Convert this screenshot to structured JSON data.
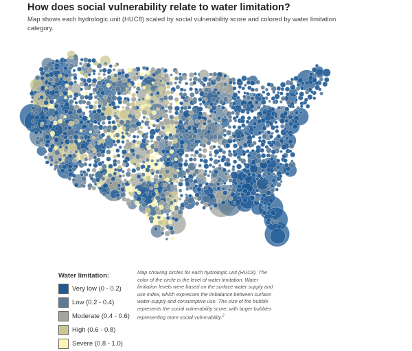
{
  "header": {
    "title": "How does social vulnerability relate to water limitation?",
    "subtitle": "Map shows each hydrologic unit (HUC8) scaled by social vulnerability score and colored by water limitation category."
  },
  "legend": {
    "title": "Water limitation:",
    "items": [
      {
        "label": "Very low (0 - 0.2)",
        "color": "#1f5a94"
      },
      {
        "label": "Low (0.2 - 0.4)",
        "color": "#5b7b97"
      },
      {
        "label": "Moderate (0.4 - 0.6)",
        "color": "#a2a59d"
      },
      {
        "label": "High (0.6 - 0.8)",
        "color": "#cbc68f"
      },
      {
        "label": "Severe (0.8 - 1.0)",
        "color": "#faf6b2"
      }
    ]
  },
  "note": {
    "text": "Map showing circles for each hydrologic unit (HUC8). The color of the circle is the level of water limitation. Water limitation levels were based on the surface water supply and use index, which expresses the imbalance between surface water-supply and consumptive use. The size of the bubble represents the social vulnerability score, with larger bubbles representing more social vulnerability.",
    "footnote": "2"
  }
}
